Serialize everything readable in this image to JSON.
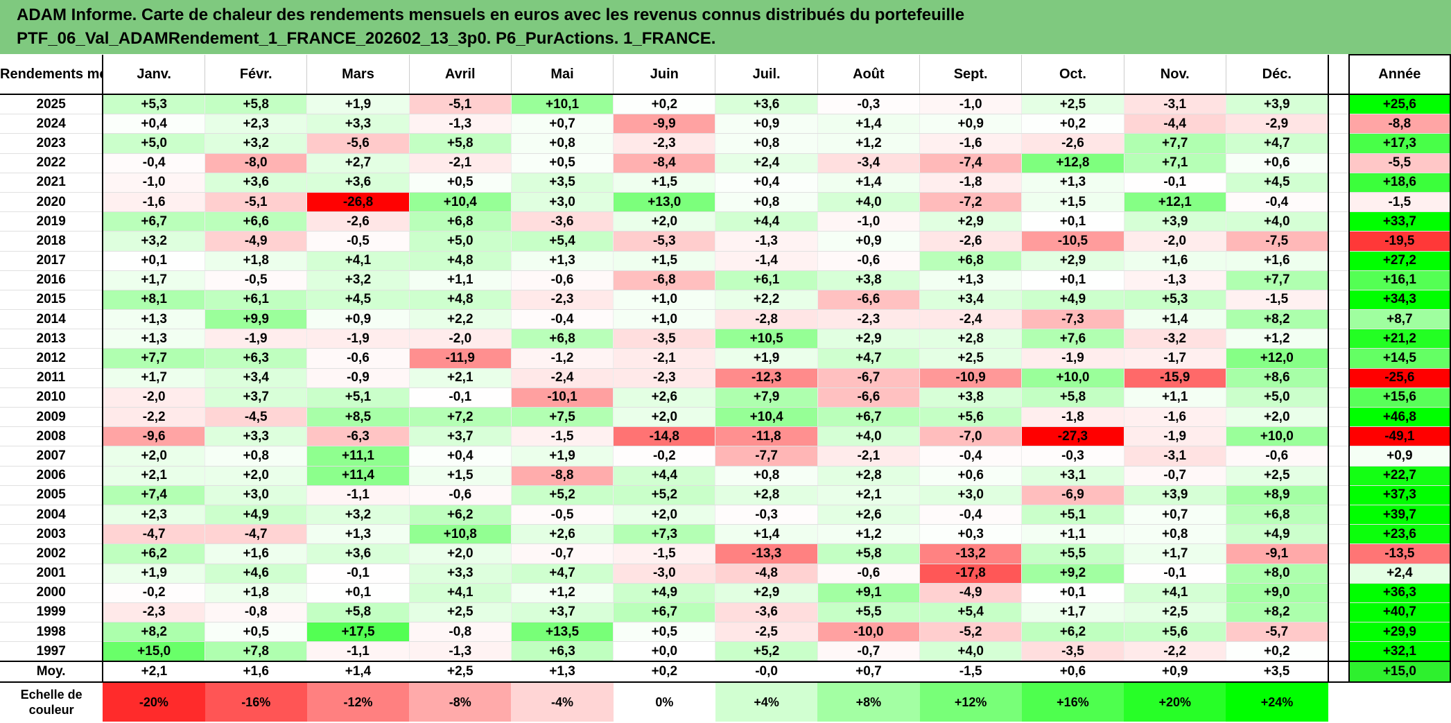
{
  "title": {
    "line1": "ADAM Informe. Carte de chaleur des rendements mensuels en euros avec les revenus connus distribués du portefeuille",
    "line2": "PTF_06_Val_ADAMRendement_1_FRANCE_202602_13_3p0. P6_PurActions. 1_FRANCE."
  },
  "corner_label": "Rendements mensuels",
  "chart_data": {
    "type": "heatmap",
    "title": "ADAM Informe. Carte de chaleur des rendements mensuels en euros avec les revenus connus distribués du portefeuille",
    "months": [
      "Janv.",
      "Févr.",
      "Mars",
      "Avril",
      "Mai",
      "Juin",
      "Juil.",
      "Août",
      "Sept.",
      "Oct.",
      "Nov.",
      "Déc."
    ],
    "annual_header": "Année",
    "rows": [
      {
        "year": "2025",
        "values": [
          5.3,
          5.8,
          1.9,
          -5.1,
          10.1,
          0.2,
          3.6,
          -0.3,
          -1.0,
          2.5,
          -3.1,
          3.9
        ],
        "annual": 25.6
      },
      {
        "year": "2024",
        "values": [
          0.4,
          2.3,
          3.3,
          -1.3,
          0.7,
          -9.9,
          0.9,
          1.4,
          0.9,
          0.2,
          -4.4,
          -2.9
        ],
        "annual": -8.8
      },
      {
        "year": "2023",
        "values": [
          5.0,
          3.2,
          -5.6,
          5.8,
          0.8,
          -2.3,
          0.8,
          1.2,
          -1.6,
          -2.6,
          7.7,
          4.7
        ],
        "annual": 17.3
      },
      {
        "year": "2022",
        "values": [
          -0.4,
          -8.0,
          2.7,
          -2.1,
          0.5,
          -8.4,
          2.4,
          -3.4,
          -7.4,
          12.8,
          7.1,
          0.6
        ],
        "annual": -5.5
      },
      {
        "year": "2021",
        "values": [
          -1.0,
          3.6,
          3.6,
          0.5,
          3.5,
          1.5,
          0.4,
          1.4,
          -1.8,
          1.3,
          -0.1,
          4.5
        ],
        "annual": 18.6
      },
      {
        "year": "2020",
        "values": [
          -1.6,
          -5.1,
          -26.8,
          10.4,
          3.0,
          13.0,
          0.8,
          4.0,
          -7.2,
          1.5,
          12.1,
          -0.4
        ],
        "annual": -1.5
      },
      {
        "year": "2019",
        "values": [
          6.7,
          6.6,
          -2.6,
          6.8,
          -3.6,
          2.0,
          4.4,
          -1.0,
          2.9,
          0.1,
          3.9,
          4.0
        ],
        "annual": 33.7
      },
      {
        "year": "2018",
        "values": [
          3.2,
          -4.9,
          -0.5,
          5.0,
          5.4,
          -5.3,
          -1.3,
          0.9,
          -2.6,
          -10.5,
          -2.0,
          -7.5
        ],
        "annual": -19.5
      },
      {
        "year": "2017",
        "values": [
          0.1,
          1.8,
          4.1,
          4.8,
          1.3,
          1.5,
          -1.4,
          -0.6,
          6.8,
          2.9,
          1.6,
          1.6
        ],
        "annual": 27.2
      },
      {
        "year": "2016",
        "values": [
          1.7,
          -0.5,
          3.2,
          1.1,
          -0.6,
          -6.8,
          6.1,
          3.8,
          1.3,
          0.1,
          -1.3,
          7.7
        ],
        "annual": 16.1
      },
      {
        "year": "2015",
        "values": [
          8.1,
          6.1,
          4.5,
          4.8,
          -2.3,
          1.0,
          2.2,
          -6.6,
          3.4,
          4.9,
          5.3,
          -1.5
        ],
        "annual": 34.3
      },
      {
        "year": "2014",
        "values": [
          1.3,
          9.9,
          0.9,
          2.2,
          -0.4,
          1.0,
          -2.8,
          -2.3,
          -2.4,
          -7.3,
          1.4,
          8.2
        ],
        "annual": 8.7
      },
      {
        "year": "2013",
        "values": [
          1.3,
          -1.9,
          -1.9,
          -2.0,
          6.8,
          -3.5,
          10.5,
          2.9,
          2.8,
          7.6,
          -3.2,
          1.2
        ],
        "annual": 21.2
      },
      {
        "year": "2012",
        "values": [
          7.7,
          6.3,
          -0.6,
          -11.9,
          -1.2,
          -2.1,
          1.9,
          4.7,
          2.5,
          -1.9,
          -1.7,
          12.0
        ],
        "annual": 14.5
      },
      {
        "year": "2011",
        "values": [
          1.7,
          3.4,
          -0.9,
          2.1,
          -2.4,
          -2.3,
          -12.3,
          -6.7,
          -10.9,
          10.0,
          -15.9,
          8.6
        ],
        "annual": -25.6
      },
      {
        "year": "2010",
        "values": [
          -2.0,
          3.7,
          5.1,
          -0.1,
          -10.1,
          2.6,
          7.9,
          -6.6,
          3.8,
          5.8,
          1.1,
          5.0
        ],
        "annual": 15.6
      },
      {
        "year": "2009",
        "values": [
          -2.2,
          -4.5,
          8.5,
          7.2,
          7.5,
          2.0,
          10.4,
          6.7,
          5.6,
          -1.8,
          -1.6,
          2.0
        ],
        "annual": 46.8
      },
      {
        "year": "2008",
        "values": [
          -9.6,
          3.3,
          -6.3,
          3.7,
          -1.5,
          -14.8,
          -11.8,
          4.0,
          -7.0,
          -27.3,
          -1.9,
          10.0
        ],
        "annual": -49.1
      },
      {
        "year": "2007",
        "values": [
          2.0,
          0.8,
          11.1,
          0.4,
          1.9,
          -0.2,
          -7.7,
          -2.1,
          -0.4,
          -0.3,
          -3.1,
          -0.6
        ],
        "annual": 0.9
      },
      {
        "year": "2006",
        "values": [
          2.1,
          2.0,
          11.4,
          1.5,
          -8.8,
          4.4,
          0.8,
          2.8,
          0.6,
          3.1,
          -0.7,
          2.5
        ],
        "annual": 22.7
      },
      {
        "year": "2005",
        "values": [
          7.4,
          3.0,
          -1.1,
          -0.6,
          5.2,
          5.2,
          2.8,
          2.1,
          3.0,
          -6.9,
          3.9,
          8.9
        ],
        "annual": 37.3
      },
      {
        "year": "2004",
        "values": [
          2.3,
          4.9,
          3.2,
          6.2,
          -0.5,
          2.0,
          -0.3,
          2.6,
          -0.4,
          5.1,
          0.7,
          6.8
        ],
        "annual": 39.7
      },
      {
        "year": "2003",
        "values": [
          -4.7,
          -4.7,
          1.3,
          10.8,
          2.6,
          7.3,
          1.4,
          1.2,
          0.3,
          1.1,
          0.8,
          4.9
        ],
        "annual": 23.6
      },
      {
        "year": "2002",
        "values": [
          6.2,
          1.6,
          3.6,
          2.0,
          -0.7,
          -1.5,
          -13.3,
          5.8,
          -13.2,
          5.5,
          1.7,
          -9.1
        ],
        "annual": -13.5
      },
      {
        "year": "2001",
        "values": [
          1.9,
          4.6,
          -0.1,
          3.3,
          4.7,
          -3.0,
          -4.8,
          -0.6,
          -17.8,
          9.2,
          -0.1,
          8.0
        ],
        "annual": 2.4
      },
      {
        "year": "2000",
        "values": [
          -0.2,
          1.8,
          0.1,
          4.1,
          1.2,
          4.9,
          2.9,
          9.1,
          -4.9,
          0.1,
          4.1,
          9.0
        ],
        "annual": 36.3
      },
      {
        "year": "1999",
        "values": [
          -2.3,
          -0.8,
          5.8,
          2.5,
          3.7,
          6.7,
          -3.6,
          5.5,
          5.4,
          1.7,
          2.5,
          8.2
        ],
        "annual": 40.7
      },
      {
        "year": "1998",
        "values": [
          8.2,
          0.5,
          17.5,
          -0.8,
          13.5,
          0.5,
          -2.5,
          -10.0,
          -5.2,
          6.2,
          5.6,
          -5.7
        ],
        "annual": 29.9
      },
      {
        "year": "1997",
        "values": [
          15.0,
          7.8,
          -1.1,
          -1.3,
          6.3,
          0.0,
          5.2,
          -0.7,
          4.0,
          -3.5,
          -2.2,
          0.2
        ],
        "annual": 32.1
      }
    ],
    "average_row": {
      "label": "Moy.",
      "values": [
        "+2,1",
        "+1,6",
        "+1,4",
        "+2,5",
        "+1,3",
        "+0,2",
        "-0,0",
        "+0,7",
        "-1,5",
        "+0,6",
        "+0,9",
        "+3,5"
      ],
      "annual": "+15,0"
    },
    "scale": {
      "label_line1": "Echelle de",
      "label_line2": "couleur",
      "steps": [
        "-20%",
        "-16%",
        "-12%",
        "-8%",
        "-4%",
        "0%",
        "+4%",
        "+8%",
        "+12%",
        "+16%",
        "+20%",
        "+24%"
      ]
    }
  },
  "colors": {
    "title_bg": "#7fc97f",
    "negative_max": "#ff0000",
    "positive_max": "#00ff00",
    "neutral": "#ffffff"
  }
}
